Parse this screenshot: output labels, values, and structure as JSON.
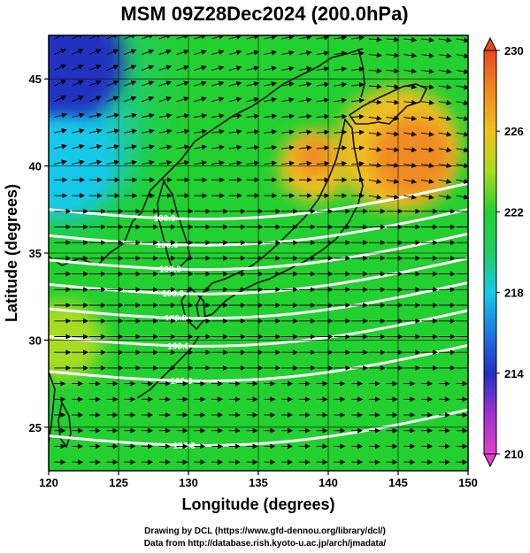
{
  "chart_data": {
    "type": "heatmap",
    "title": "MSM 09Z28Dec2024 (200.0hPa)",
    "xlabel": "Longitude (degrees)",
    "ylabel": "Latitude  (degrees)",
    "xlim": [
      120,
      150
    ],
    "ylim": [
      22.5,
      47.5
    ],
    "xticks": [
      "120",
      "125",
      "130",
      "135",
      "140",
      "145",
      "150"
    ],
    "yticks": [
      "25",
      "30",
      "35",
      "40",
      "45"
    ],
    "field": "temperature",
    "colorbar": {
      "range": [
        210,
        230
      ],
      "ticks": [
        "210",
        "214",
        "218",
        "222",
        "226",
        "230"
      ],
      "colors": {
        "210": "#e040c8",
        "212": "#a030d0",
        "214": "#2030c0",
        "216": "#1e78e0",
        "218": "#18c8e8",
        "220": "#22cc66",
        "222": "#22d030",
        "224": "#a8dc20",
        "226": "#f0c020",
        "228": "#f08a20",
        "230": "#e84a20"
      }
    },
    "temperature_regions": [
      {
        "area": "northwest corner near (121, 46)",
        "value": 214
      },
      {
        "area": "west edge near (121, 40)",
        "value": 218
      },
      {
        "area": "most of domain",
        "value": 222
      },
      {
        "area": "northeast near (145, 41)",
        "value": 226
      },
      {
        "area": "near (139, 40)",
        "value": 226
      },
      {
        "area": "west edge near (121, 30)",
        "value": 224
      }
    ],
    "jet_isotachs": {
      "color": "#ffffff",
      "labels": [
        "100.0",
        "100.0",
        "100.0",
        "100.0",
        "100.0",
        "100.0",
        "100.0",
        "100.0"
      ]
    },
    "wind_vectors": "streamline arrows, generally westerly",
    "grid": true
  },
  "credits": {
    "line1": "Drawing by DCL (https://www.gfd-dennou.org/library/dcl/)",
    "line2": "Data from http://database.rish.kyoto-u.ac.jp/arch/jmadata/"
  }
}
